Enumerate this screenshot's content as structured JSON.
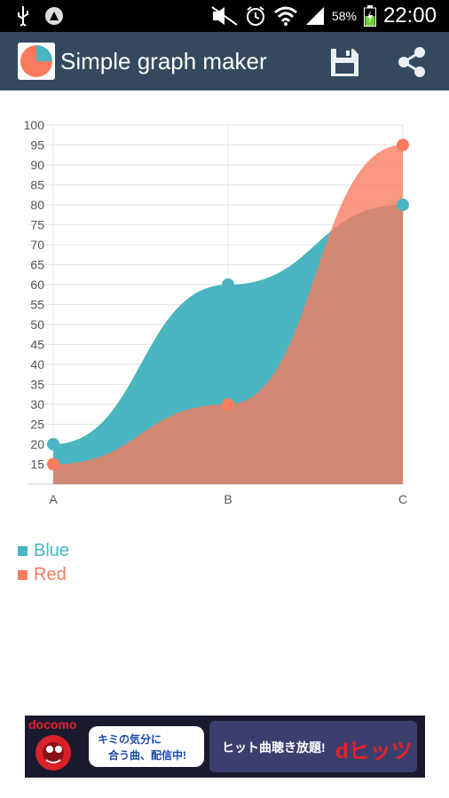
{
  "status_bar": {
    "battery": "58%",
    "time": "22:00"
  },
  "app": {
    "title": "Simple graph maker"
  },
  "colors": {
    "actionbar": "#34495e",
    "blue": "#4ab5c1",
    "red": "#f97a5d",
    "overlap": "#c97e70"
  },
  "icons": {
    "status": [
      "usb-icon",
      "notification-icon",
      "mute-icon",
      "alarm-icon",
      "wifi-icon",
      "signal-icon",
      "battery-icon"
    ],
    "toolbar": [
      "app-logo-icon",
      "save-icon",
      "share-icon"
    ]
  },
  "chart_data": {
    "type": "area",
    "categories": [
      "A",
      "B",
      "C"
    ],
    "series": [
      {
        "name": "Blue",
        "values": [
          20,
          60,
          80
        ],
        "color": "#4ab5c1"
      },
      {
        "name": "Red",
        "values": [
          15,
          30,
          95
        ],
        "color": "#f97a5d"
      }
    ],
    "ylim": [
      10,
      100
    ],
    "yticks": [
      15,
      20,
      25,
      30,
      35,
      40,
      45,
      50,
      55,
      60,
      65,
      70,
      75,
      80,
      85,
      90,
      95,
      100
    ],
    "title": "",
    "xlabel": "",
    "ylabel": "",
    "grid": true,
    "legend": "bottom-left",
    "smooth": true
  },
  "ad": {
    "brand": "docomo",
    "bubble_line1": "キミの気分に",
    "bubble_line2": "合う曲、配信中!",
    "cta": "ヒット曲聴き放題!",
    "logo_text": "dヒッツ"
  }
}
